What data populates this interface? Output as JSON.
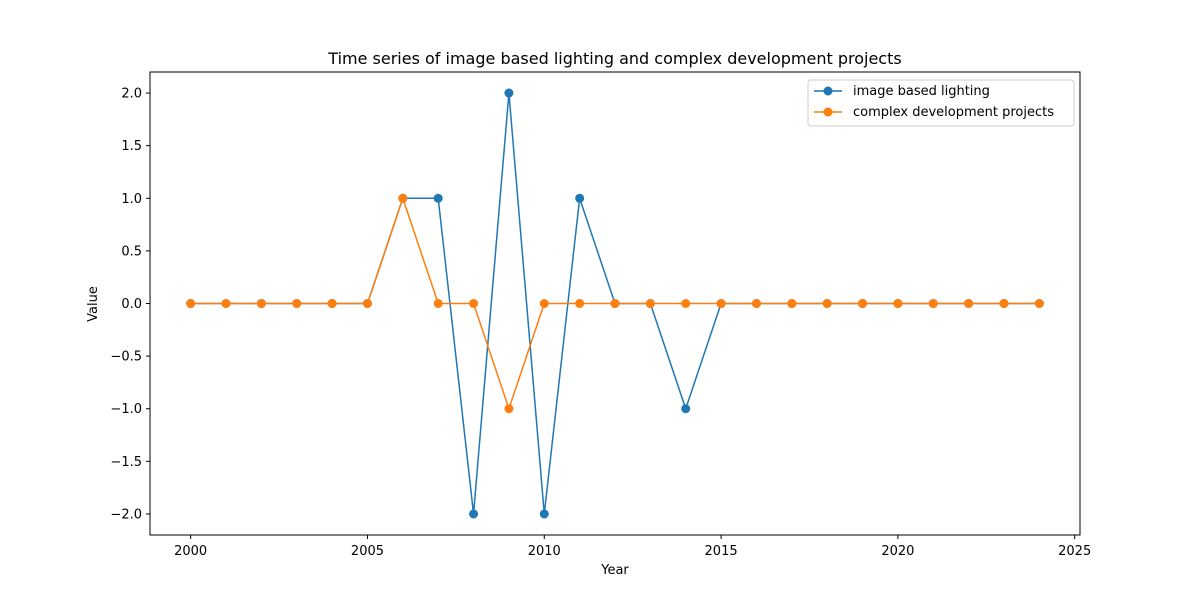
{
  "chart_data": {
    "type": "line",
    "title": "Time series of image based lighting and complex development projects",
    "xlabel": "Year",
    "ylabel": "Value",
    "xlim": [
      1998.85,
      2025.15
    ],
    "ylim": [
      -2.2,
      2.2
    ],
    "xticks": [
      2000,
      2005,
      2010,
      2015,
      2020,
      2025
    ],
    "xtick_labels": [
      "2000",
      "2005",
      "2010",
      "2015",
      "2020",
      "2025"
    ],
    "yticks": [
      -2.0,
      -1.5,
      -1.0,
      -0.5,
      0.0,
      0.5,
      1.0,
      1.5,
      2.0
    ],
    "ytick_labels": [
      "−2.0",
      "−1.5",
      "−1.0",
      "−0.5",
      "0.0",
      "0.5",
      "1.0",
      "1.5",
      "2.0"
    ],
    "grid": false,
    "legend_position": "top-right",
    "x": [
      2000,
      2001,
      2002,
      2003,
      2004,
      2005,
      2006,
      2007,
      2008,
      2009,
      2010,
      2011,
      2012,
      2013,
      2014,
      2015,
      2016,
      2017,
      2018,
      2019,
      2020,
      2021,
      2022,
      2023,
      2024
    ],
    "series": [
      {
        "name": "image based lighting",
        "color": "#1f77b4",
        "values": [
          0,
          0,
          0,
          0,
          0,
          0,
          1,
          1,
          -2,
          2,
          -2,
          1,
          0,
          0,
          -1,
          0,
          0,
          0,
          0,
          0,
          0,
          0,
          0,
          0,
          0
        ]
      },
      {
        "name": "complex development projects",
        "color": "#ff7f0e",
        "values": [
          0,
          0,
          0,
          0,
          0,
          0,
          1,
          0,
          0,
          -1,
          0,
          0,
          0,
          0,
          0,
          0,
          0,
          0,
          0,
          0,
          0,
          0,
          0,
          0,
          0
        ]
      }
    ]
  }
}
